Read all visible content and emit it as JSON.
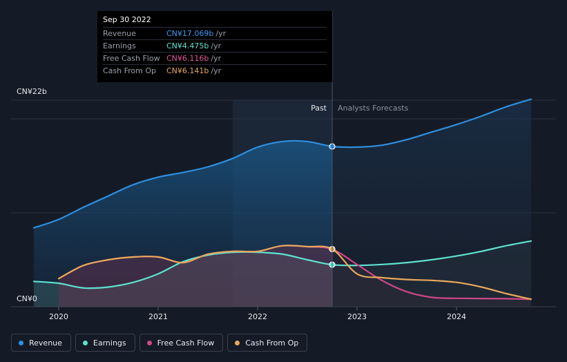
{
  "chart_data": {
    "type": "line",
    "y_top_label": "CN¥22b",
    "y_bottom_label": "CN¥0",
    "ylim": [
      0,
      22
    ],
    "x_ticks": [
      "2020",
      "2021",
      "2022",
      "2023",
      "2024"
    ],
    "past_label": "Past",
    "forecast_label": "Analysts Forecasts",
    "divider_date": 2022.75,
    "highlight_start": 2021.75,
    "series": [
      {
        "name": "Revenue",
        "color": "#2f8fe0",
        "fill": true,
        "points": [
          [
            2019.75,
            8.4
          ],
          [
            2020.0,
            9.3
          ],
          [
            2020.25,
            10.6
          ],
          [
            2020.5,
            11.8
          ],
          [
            2020.75,
            13.0
          ],
          [
            2021.0,
            13.8
          ],
          [
            2021.25,
            14.3
          ],
          [
            2021.5,
            14.9
          ],
          [
            2021.75,
            15.8
          ],
          [
            2022.0,
            17.0
          ],
          [
            2022.25,
            17.6
          ],
          [
            2022.5,
            17.6
          ],
          [
            2022.75,
            17.07
          ],
          [
            2023.0,
            17.0
          ],
          [
            2023.25,
            17.2
          ],
          [
            2023.5,
            17.8
          ],
          [
            2023.75,
            18.6
          ],
          [
            2024.0,
            19.4
          ],
          [
            2024.25,
            20.3
          ],
          [
            2024.5,
            21.3
          ],
          [
            2024.75,
            22.1
          ]
        ]
      },
      {
        "name": "Earnings",
        "color": "#5ee2d0",
        "fill": true,
        "points": [
          [
            2019.75,
            2.7
          ],
          [
            2020.0,
            2.5
          ],
          [
            2020.25,
            2.0
          ],
          [
            2020.5,
            2.1
          ],
          [
            2020.75,
            2.6
          ],
          [
            2021.0,
            3.5
          ],
          [
            2021.25,
            4.8
          ],
          [
            2021.5,
            5.5
          ],
          [
            2021.75,
            5.8
          ],
          [
            2022.0,
            5.8
          ],
          [
            2022.25,
            5.6
          ],
          [
            2022.5,
            5.0
          ],
          [
            2022.75,
            4.475
          ],
          [
            2023.0,
            4.4
          ],
          [
            2023.25,
            4.5
          ],
          [
            2023.5,
            4.7
          ],
          [
            2023.75,
            5.0
          ],
          [
            2024.0,
            5.4
          ],
          [
            2024.25,
            5.9
          ],
          [
            2024.5,
            6.5
          ],
          [
            2024.75,
            7.0
          ]
        ]
      },
      {
        "name": "Free Cash Flow",
        "color": "#d0468a",
        "fill": true,
        "points": [
          [
            2020.0,
            3.0
          ],
          [
            2020.25,
            4.4
          ],
          [
            2020.5,
            5.0
          ],
          [
            2020.75,
            5.3
          ],
          [
            2021.0,
            5.3
          ],
          [
            2021.25,
            4.7
          ],
          [
            2021.5,
            5.6
          ],
          [
            2021.75,
            5.9
          ],
          [
            2022.0,
            5.9
          ],
          [
            2022.25,
            6.5
          ],
          [
            2022.5,
            6.4
          ],
          [
            2022.75,
            6.116
          ],
          [
            2023.0,
            4.5
          ],
          [
            2023.25,
            2.8
          ],
          [
            2023.5,
            1.6
          ],
          [
            2023.75,
            1.0
          ],
          [
            2024.0,
            0.9
          ],
          [
            2024.5,
            0.85
          ],
          [
            2024.75,
            0.8
          ]
        ]
      },
      {
        "name": "Cash From Op",
        "color": "#e8a95a",
        "fill": false,
        "points": [
          [
            2020.0,
            3.0
          ],
          [
            2020.25,
            4.4
          ],
          [
            2020.5,
            5.0
          ],
          [
            2020.75,
            5.3
          ],
          [
            2021.0,
            5.3
          ],
          [
            2021.25,
            4.7
          ],
          [
            2021.5,
            5.6
          ],
          [
            2021.75,
            5.9
          ],
          [
            2022.0,
            5.9
          ],
          [
            2022.25,
            6.5
          ],
          [
            2022.5,
            6.4
          ],
          [
            2022.75,
            6.141
          ],
          [
            2023.0,
            3.5
          ],
          [
            2023.25,
            3.1
          ],
          [
            2023.5,
            2.9
          ],
          [
            2023.75,
            2.8
          ],
          [
            2024.0,
            2.6
          ],
          [
            2024.25,
            2.1
          ],
          [
            2024.5,
            1.4
          ],
          [
            2024.75,
            0.8
          ]
        ]
      }
    ]
  },
  "tooltip": {
    "date": "Sep 30 2022",
    "unit": "/yr",
    "rows": [
      {
        "label": "Revenue",
        "value": "CN¥17.069b",
        "color": "#3a9af0"
      },
      {
        "label": "Earnings",
        "value": "CN¥4.475b",
        "color": "#5ee2d0"
      },
      {
        "label": "Free Cash Flow",
        "value": "CN¥6.116b",
        "color": "#e0589b"
      },
      {
        "label": "Cash From Op",
        "value": "CN¥6.141b",
        "color": "#e8a95a"
      }
    ]
  },
  "legend": [
    {
      "label": "Revenue",
      "color": "#2f8fe0"
    },
    {
      "label": "Earnings",
      "color": "#5ee2d0"
    },
    {
      "label": "Free Cash Flow",
      "color": "#d0468a"
    },
    {
      "label": "Cash From Op",
      "color": "#e8a95a"
    }
  ]
}
